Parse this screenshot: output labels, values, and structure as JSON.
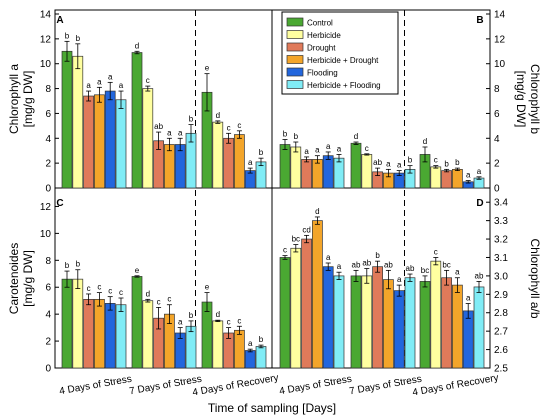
{
  "chart_data": {
    "type": "bar",
    "xlabel": "Time of sampling [Days]",
    "groups": [
      "4 Days of Stress",
      "7 Days of Stress",
      "4 Days of Recovery"
    ],
    "treatments": [
      {
        "name": "Control",
        "color": "#4aa832"
      },
      {
        "name": "Herbicide",
        "color": "#ffffa0"
      },
      {
        "name": "Drought",
        "color": "#e07a5a"
      },
      {
        "name": "Herbicide + Drought",
        "color": "#f3a52a"
      },
      {
        "name": "Flooding",
        "color": "#2266dd"
      },
      {
        "name": "Herbicide + Flooding",
        "color": "#80ecf6"
      }
    ],
    "panels": [
      {
        "letter": "A",
        "ylabel": [
          "Chlorophyll a",
          "[mg/g DW]"
        ],
        "ylim": [
          0,
          14
        ],
        "ticks": [
          "0",
          "2",
          "4",
          "6",
          "8",
          "10",
          "12",
          "14"
        ],
        "values": [
          [
            11.0,
            10.6,
            7.4,
            7.5,
            7.8,
            7.1
          ],
          [
            10.9,
            8.0,
            3.8,
            3.5,
            3.5,
            4.4
          ],
          [
            7.7,
            5.3,
            4.0,
            4.3,
            1.4,
            2.1
          ]
        ],
        "errors": [
          [
            0.8,
            1.0,
            0.4,
            0.6,
            0.7,
            0.7
          ],
          [
            0.1,
            0.2,
            0.7,
            0.5,
            0.5,
            0.7
          ],
          [
            1.5,
            0.1,
            0.4,
            0.3,
            0.2,
            0.3
          ]
        ],
        "letters": [
          [
            "b",
            "b",
            "a",
            "a",
            "a",
            "a"
          ],
          [
            "d",
            "c",
            "ab",
            "a",
            "a",
            "b"
          ],
          [
            "e",
            "d",
            "c",
            "c",
            "a",
            "b"
          ]
        ]
      },
      {
        "letter": "B",
        "ylabel": [
          "Chlorophyll b",
          "[mg/g DW]"
        ],
        "ylim": [
          0,
          14
        ],
        "ticks": [
          "0",
          "2",
          "4",
          "6",
          "8",
          "10",
          "12",
          "14"
        ],
        "values": [
          [
            3.5,
            3.3,
            2.3,
            2.3,
            2.6,
            2.4
          ],
          [
            3.6,
            2.7,
            1.3,
            1.2,
            1.2,
            1.5
          ],
          [
            2.7,
            1.7,
            1.4,
            1.5,
            0.5,
            0.8
          ]
        ],
        "errors": [
          [
            0.4,
            0.4,
            0.2,
            0.3,
            0.3,
            0.3
          ],
          [
            0.1,
            0.05,
            0.3,
            0.3,
            0.2,
            0.3
          ],
          [
            0.6,
            0.1,
            0.1,
            0.1,
            0.1,
            0.1
          ]
        ],
        "letters": [
          [
            "b",
            "b",
            "a",
            "a",
            "a",
            "a"
          ],
          [
            "d",
            "c",
            "ab",
            "a",
            "a",
            "b"
          ],
          [
            "d",
            "c",
            "b",
            "b",
            "a",
            "a"
          ]
        ]
      },
      {
        "letter": "C",
        "ylabel": [
          "Carotenoides",
          "[mg/g DW]"
        ],
        "ylim": [
          0,
          13
        ],
        "ticks": [
          "0",
          "2",
          "4",
          "6",
          "8",
          "10",
          "12"
        ],
        "values": [
          [
            6.6,
            6.6,
            5.1,
            5.1,
            4.8,
            4.7
          ],
          [
            6.8,
            5.0,
            3.7,
            4.0,
            2.6,
            3.1
          ],
          [
            4.9,
            3.5,
            2.6,
            2.8,
            1.3,
            1.6
          ]
        ],
        "errors": [
          [
            0.6,
            0.7,
            0.4,
            0.5,
            0.5,
            0.5
          ],
          [
            0.05,
            0.1,
            0.8,
            0.7,
            0.4,
            0.4
          ],
          [
            0.7,
            0.05,
            0.4,
            0.3,
            0.1,
            0.1
          ]
        ],
        "letters": [
          [
            "b",
            "b",
            "c",
            "c",
            "c",
            "c"
          ],
          [
            "e",
            "d",
            "c",
            "c",
            "a",
            "b"
          ],
          [
            "e",
            "d",
            "c",
            "c",
            "a",
            "b"
          ]
        ]
      },
      {
        "letter": "D",
        "ylabel": [
          "Chlorophyll a/b",
          ""
        ],
        "ylim": [
          2.5,
          3.45
        ],
        "ticks": [
          "2.5",
          "2.6",
          "2.7",
          "2.8",
          "2.9",
          "3.0",
          "3.1",
          "3.2",
          "3.3",
          "3.4"
        ],
        "values": [
          [
            3.1,
            3.15,
            3.2,
            3.3,
            3.05,
            3.0
          ],
          [
            3.0,
            3.0,
            3.05,
            2.98,
            2.92,
            2.99
          ],
          [
            2.97,
            3.08,
            2.99,
            2.95,
            2.81,
            2.94
          ]
        ],
        "errors": [
          [
            0.01,
            0.02,
            0.02,
            0.02,
            0.02,
            0.02
          ],
          [
            0.03,
            0.04,
            0.03,
            0.05,
            0.03,
            0.02
          ],
          [
            0.03,
            0.02,
            0.04,
            0.04,
            0.04,
            0.03
          ]
        ],
        "letters": [
          [
            "c",
            "bc",
            "cd",
            "d",
            "a",
            "a"
          ],
          [
            "ab",
            "ab",
            "b",
            "ab",
            "a",
            "ab"
          ],
          [
            "bc",
            "c",
            "bc",
            "a",
            "a",
            "ab"
          ]
        ]
      }
    ]
  }
}
